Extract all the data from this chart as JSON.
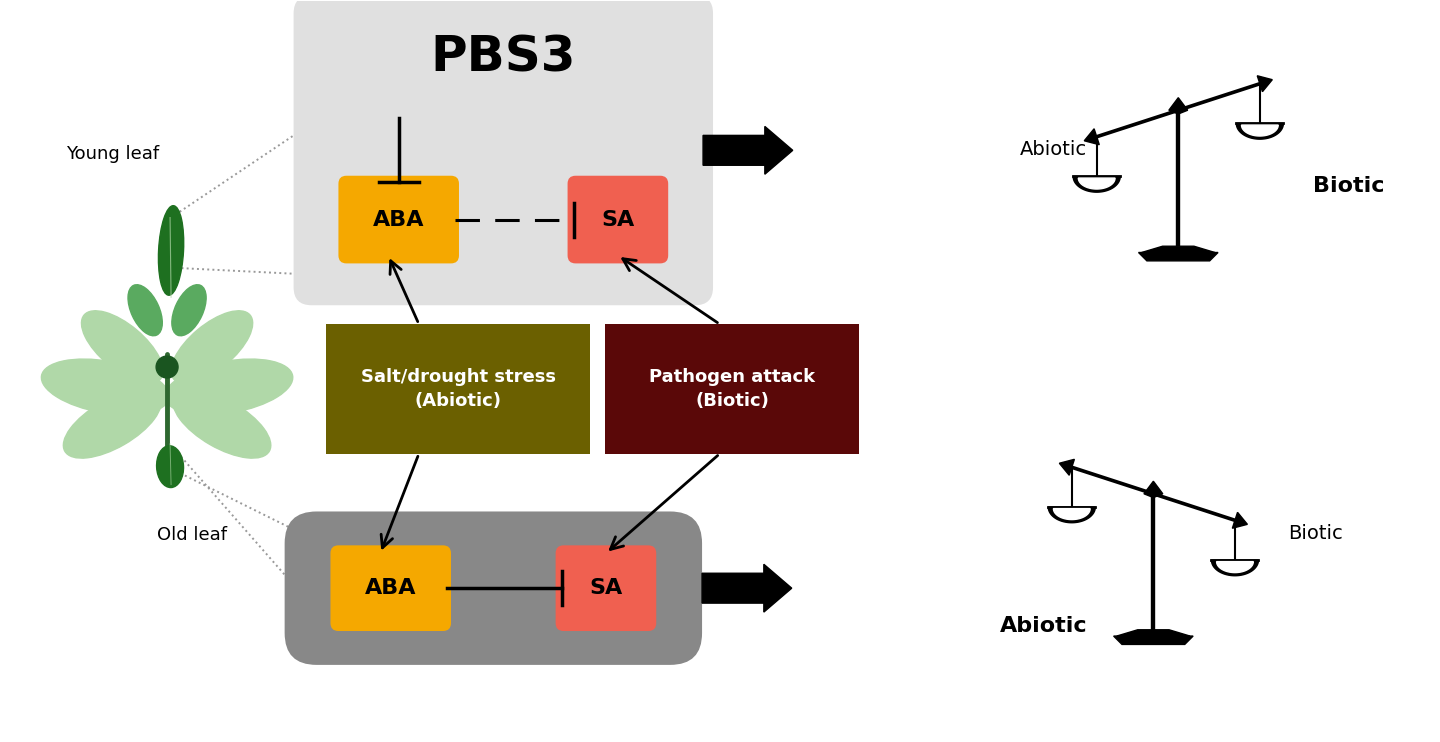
{
  "bg_color": "#ffffff",
  "young_leaf_label": "Young leaf",
  "old_leaf_label": "Old leaf",
  "pbs3_label": "PBS3",
  "aba_label": "ABA",
  "sa_label": "SA",
  "abiotic_label_top": "Abiotic",
  "biotic_label_top": "Biotic",
  "abiotic_label_bottom": "Abiotic",
  "biotic_label_bottom": "Biotic",
  "salt_label": "Salt/drought stress\n(Abiotic)",
  "pathogen_label": "Pathogen attack\n(Biotic)",
  "aba_color": "#F5A800",
  "sa_color": "#F06050",
  "top_box_bg": "#E0E0E0",
  "bottom_box_bg": "#888888",
  "salt_box_color": "#6B6000",
  "pathogen_box_color": "#5A0808",
  "text_color": "#000000",
  "leaf_pale": "#B0D8A8",
  "leaf_mid": "#5AAA60",
  "leaf_dark": "#1E7020",
  "leaf_stem": "#2E6830"
}
